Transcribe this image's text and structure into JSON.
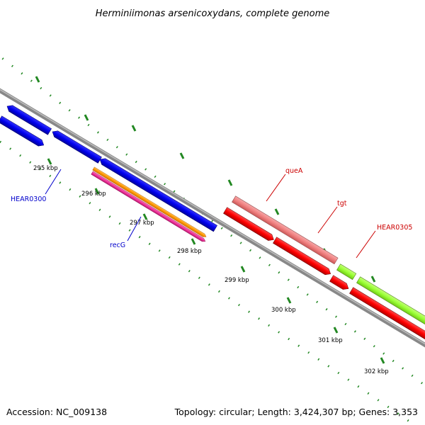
{
  "title": "Herminiimonas arsenicoxydans, complete genome",
  "footer": {
    "accession": "Accession: NC_009138",
    "summary": "Topology: circular; Length: 3,424,307 bp; Genes: 3,353"
  },
  "ticks": [
    "295 kbp",
    "296 kbp",
    "297 kbp",
    "298 kbp",
    "299 kbp",
    "300 kbp",
    "301 kbp",
    "302 kbp"
  ],
  "gene_labels": {
    "hear0300": "HEAR0300",
    "recg": "recG",
    "quea": "queA",
    "tgt": "tgt",
    "hear0305": "HEAR0305"
  },
  "colors": {
    "blue_genes": "#0000ee",
    "orange_gene": "#ff9900",
    "pink_gene": "#ee3399",
    "red_genes": "#ff0000",
    "salmon_gene": "#f08080",
    "green_gene": "#99ff33",
    "backbone": "#888888",
    "tick_marks": "#228822",
    "blue_label": "#0000cc",
    "red_label": "#cc0000"
  }
}
